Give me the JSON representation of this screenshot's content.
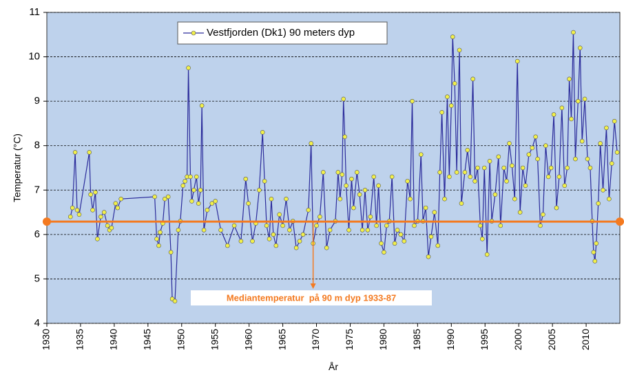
{
  "chart_data": {
    "type": "line",
    "xlabel": "År",
    "ylabel": "Temperatur (°C)",
    "x": [
      1933.5,
      1933.8,
      1934.2,
      1934.5,
      1934.8,
      1936.3,
      1936.5,
      1936.8,
      1937.2,
      1937.5,
      1938,
      1938.5,
      1939,
      1939.3,
      1939.6,
      1940.2,
      1940.5,
      1941,
      1946,
      1946.3,
      1946.6,
      1946.8,
      1947.2,
      1947.5,
      1948,
      1948.4,
      1948.6,
      1949,
      1949.5,
      1949.8,
      1950.2,
      1950.5,
      1950.8,
      1951,
      1951.3,
      1951.5,
      1951.8,
      1952.2,
      1952.5,
      1952.8,
      1953,
      1953.3,
      1953.8,
      1954.5,
      1955,
      1955.8,
      1956.8,
      1957.8,
      1958.8,
      1959.5,
      1959.9,
      1960.5,
      1961,
      1961.5,
      1962,
      1962.3,
      1962.6,
      1963,
      1963.3,
      1963.6,
      1964,
      1964.5,
      1965,
      1965.5,
      1966,
      1966.5,
      1967,
      1967.5,
      1968,
      1968.8,
      1969.2,
      1969.5,
      1970,
      1970.5,
      1971,
      1971.5,
      1972,
      1972.8,
      1973.2,
      1973.5,
      1973.8,
      1974,
      1974.2,
      1974.4,
      1974.8,
      1975.2,
      1975.5,
      1976,
      1976.4,
      1976.8,
      1977.2,
      1977.6,
      1978,
      1978.5,
      1978.9,
      1979.2,
      1979.6,
      1980,
      1980.4,
      1980.8,
      1981.2,
      1981.6,
      1982,
      1982.5,
      1983,
      1983.5,
      1983.9,
      1984.2,
      1984.5,
      1985,
      1985.5,
      1985.8,
      1986.2,
      1986.6,
      1987,
      1987.5,
      1988,
      1988.3,
      1988.6,
      1989,
      1989.4,
      1989.7,
      1990,
      1990.2,
      1990.5,
      1990.8,
      1991.2,
      1991.5,
      1992,
      1992.4,
      1992.8,
      1993.2,
      1993.5,
      1993.9,
      1994.3,
      1994.6,
      1994.9,
      1995.3,
      1995.7,
      1996,
      1996.5,
      1997,
      1997.3,
      1997.8,
      1998.2,
      1998.6,
      1999,
      1999.4,
      1999.8,
      2000.2,
      2000.6,
      2001,
      2001.5,
      2002,
      2002.5,
      2002.8,
      2003.2,
      2003.6,
      2004,
      2004.4,
      2004.8,
      2005.2,
      2005.6,
      2006,
      2006.4,
      2006.8,
      2007.2,
      2007.5,
      2007.8,
      2008.1,
      2008.4,
      2008.8,
      2009.1,
      2009.4,
      2009.8,
      2010.2,
      2010.6,
      2010.9,
      2011.1,
      2011.3,
      2011.5,
      2011.8,
      2012.1,
      2012.5,
      2013,
      2013.4,
      2013.8,
      2014.2,
      2014.6
    ],
    "series": [
      {
        "name": "Vestfjorden (Dk1) 90 meters dyp",
        "color": "#2a2a9a",
        "marker_color": "#f2f04a",
        "values": [
          6.4,
          6.6,
          7.85,
          6.55,
          6.45,
          7.85,
          6.9,
          6.55,
          6.95,
          5.9,
          6.4,
          6.5,
          6.2,
          6.1,
          6.15,
          6.7,
          6.6,
          6.8,
          6.85,
          5.9,
          5.75,
          6.05,
          6.25,
          6.8,
          6.85,
          5.6,
          4.55,
          4.5,
          6.1,
          6.3,
          7.1,
          7.2,
          7.3,
          9.75,
          7.3,
          6.75,
          7.0,
          7.3,
          6.7,
          7.0,
          8.9,
          6.1,
          6.55,
          6.7,
          6.75,
          6.1,
          5.75,
          6.2,
          5.85,
          7.25,
          6.7,
          5.85,
          6.25,
          7.0,
          8.3,
          7.2,
          6.2,
          5.9,
          6.8,
          6.0,
          5.75,
          6.45,
          6.2,
          6.8,
          6.1,
          6.3,
          5.7,
          5.85,
          6.0,
          6.55,
          8.05,
          5.8,
          6.2,
          6.4,
          7.4,
          5.7,
          6.1,
          6.3,
          7.4,
          6.8,
          7.35,
          9.05,
          8.2,
          7.1,
          6.1,
          7.25,
          6.6,
          7.4,
          6.9,
          6.1,
          7.0,
          6.1,
          6.4,
          7.3,
          6.2,
          7.1,
          5.8,
          5.6,
          6.2,
          6.3,
          7.3,
          5.8,
          6.1,
          6.0,
          5.85,
          7.2,
          6.8,
          9.0,
          6.2,
          6.3,
          7.8,
          6.3,
          6.6,
          5.5,
          5.95,
          6.5,
          5.75,
          7.4,
          8.75,
          6.8,
          9.1,
          7.3,
          8.9,
          10.45,
          9.4,
          7.4,
          10.15,
          6.7,
          7.4,
          7.9,
          7.3,
          9.5,
          7.2,
          7.5,
          6.2,
          5.9,
          7.5,
          5.55,
          7.65,
          6.3,
          6.9,
          7.75,
          6.2,
          7.5,
          7.2,
          8.05,
          7.55,
          6.8,
          9.9,
          6.5,
          7.5,
          7.1,
          7.8,
          7.95,
          8.2,
          7.7,
          6.2,
          6.45,
          8.0,
          7.3,
          7.5,
          8.7,
          6.6,
          7.3,
          8.85,
          7.1,
          7.5,
          9.5,
          8.6,
          10.55,
          7.7,
          9.0,
          10.2,
          8.1,
          9.05,
          7.7,
          7.5,
          6.3,
          5.6,
          5.4,
          5.8,
          6.7,
          8.05,
          7.0,
          8.4,
          6.8,
          7.6,
          8.55,
          7.85
        ]
      }
    ],
    "median": {
      "value": 6.29,
      "x": 1969.5,
      "label": "Mediantemperatur  på 90 m dyp 1933-87",
      "color": "#f47a20"
    },
    "xlim": [
      1930,
      2015
    ],
    "xticks": [
      1930,
      1935,
      1940,
      1945,
      1950,
      1955,
      1960,
      1965,
      1970,
      1975,
      1980,
      1985,
      1990,
      1995,
      2000,
      2005,
      2010
    ],
    "ylim": [
      4,
      11
    ],
    "yticks": [
      4,
      5,
      6,
      7,
      8,
      9,
      10,
      11
    ],
    "grid": true,
    "background": "#bed2ec"
  }
}
